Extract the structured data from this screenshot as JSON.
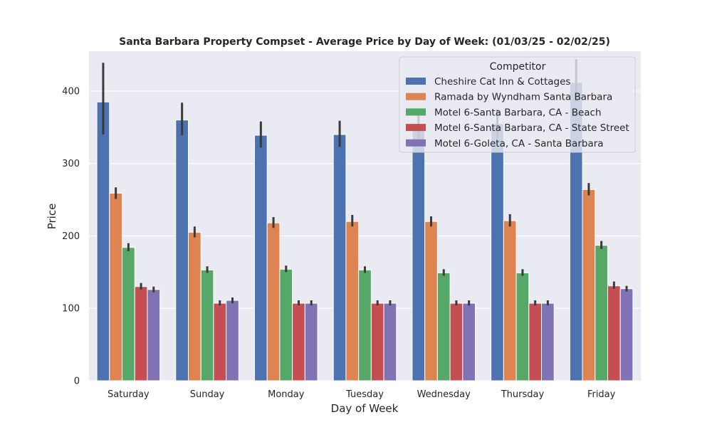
{
  "chart_data": {
    "type": "bar",
    "title": "Santa Barbara Property Compset - Average Price by Day of Week: (01/03/25 - 02/02/25)",
    "xlabel": "Day of Week",
    "ylabel": "Price",
    "ylim": [
      0,
      455
    ],
    "yticks": [
      0,
      100,
      200,
      300,
      400
    ],
    "grid": true,
    "legend_title": "Competitor",
    "legend_position": "top-right",
    "categories": [
      "Saturday",
      "Sunday",
      "Monday",
      "Tuesday",
      "Wednesday",
      "Thursday",
      "Friday"
    ],
    "series": [
      {
        "name": "Cheshire Cat Inn & Cottages",
        "color": "#4c72b0",
        "values": [
          385,
          360,
          339,
          340,
          350,
          355,
          412
        ],
        "ci_low": [
          340,
          339,
          322,
          323,
          332,
          335,
          385
        ],
        "ci_high": [
          439,
          384,
          358,
          359,
          368,
          375,
          444
        ]
      },
      {
        "name": "Ramada by Wyndham Santa Barbara",
        "color": "#dd8452",
        "values": [
          259,
          205,
          218,
          220,
          220,
          221,
          264
        ],
        "ci_low": [
          251,
          198,
          211,
          213,
          213,
          213,
          256
        ],
        "ci_high": [
          267,
          213,
          226,
          229,
          227,
          230,
          273
        ]
      },
      {
        "name": "Motel 6-Santa Barbara, CA - Beach",
        "color": "#55a868",
        "values": [
          184,
          153,
          154,
          153,
          149,
          149,
          187
        ],
        "ci_low": [
          179,
          149,
          150,
          149,
          145,
          145,
          182
        ],
        "ci_high": [
          190,
          158,
          159,
          158,
          154,
          154,
          193
        ]
      },
      {
        "name": "Motel 6-Santa Barbara, CA - State Street",
        "color": "#c44e52",
        "values": [
          130,
          107,
          107,
          107,
          107,
          107,
          131
        ],
        "ci_low": [
          126,
          104,
          104,
          104,
          104,
          104,
          127
        ],
        "ci_high": [
          135,
          111,
          111,
          111,
          111,
          111,
          137
        ]
      },
      {
        "name": "Motel 6-Goleta, CA - Santa Barbara",
        "color": "#8172b3",
        "values": [
          126,
          111,
          107,
          107,
          107,
          107,
          127
        ],
        "ci_low": [
          122,
          107,
          104,
          104,
          104,
          104,
          123
        ],
        "ci_high": [
          130,
          115,
          111,
          111,
          111,
          111,
          131
        ]
      }
    ]
  },
  "style": {
    "plot_background": "#eaeaf2",
    "grid_color": "#ffffff",
    "errorbar_color": "#3b3b3b"
  }
}
